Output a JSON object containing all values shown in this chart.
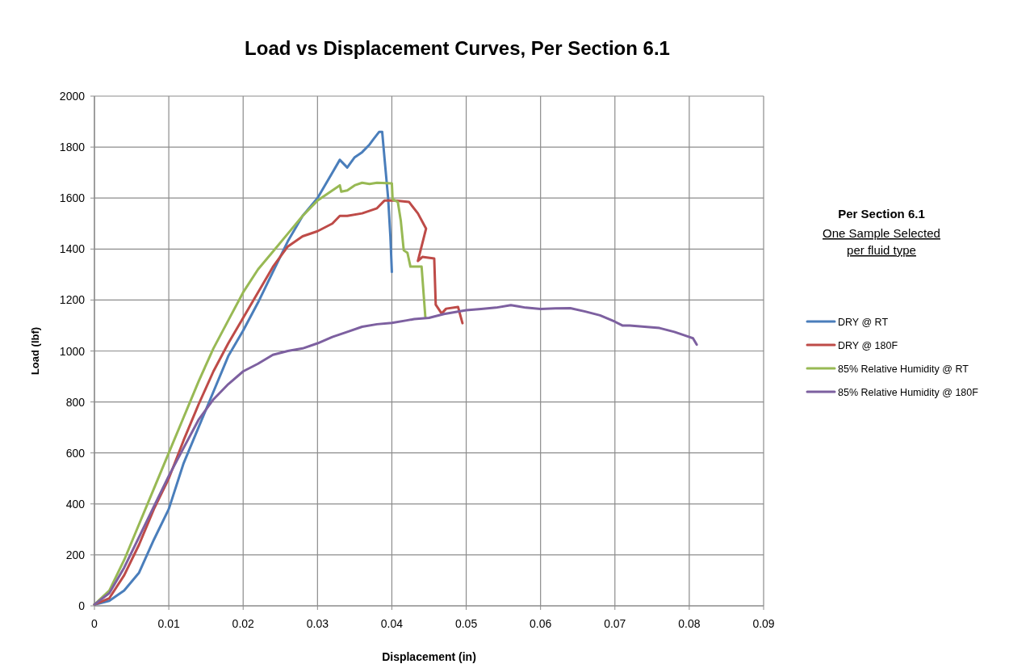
{
  "chart_data": {
    "type": "line",
    "title": "Load vs Displacement Curves, Per Section 6.1",
    "xlabel": "Displacement  (in)",
    "ylabel": "Load (lbf)",
    "legend_title": "Per Section 6.1",
    "annotations": [
      "One Sample Selected",
      "per fluid type"
    ],
    "xlim": [
      0,
      0.09
    ],
    "xticks": [
      0,
      0.01,
      0.02,
      0.03,
      0.04,
      0.05,
      0.06,
      0.07,
      0.08,
      0.09
    ],
    "ylim": [
      0,
      2000
    ],
    "yticks": [
      0,
      200,
      400,
      600,
      800,
      1000,
      1200,
      1400,
      1600,
      1800,
      2000
    ],
    "grid": true,
    "legend": "right",
    "marker": "none",
    "line_style": "solid",
    "series": [
      {
        "name": "DRY @ RT",
        "color": "#4a7ebb",
        "x": [
          0,
          0.002,
          0.004,
          0.006,
          0.008,
          0.01,
          0.012,
          0.014,
          0.016,
          0.018,
          0.02,
          0.022,
          0.024,
          0.026,
          0.028,
          0.03,
          0.031,
          0.032,
          0.033,
          0.034,
          0.035,
          0.036,
          0.037,
          0.0375,
          0.0383,
          0.0387,
          0.039,
          0.0395,
          0.0398,
          0.04
        ],
        "values": [
          5,
          20,
          60,
          130,
          260,
          380,
          560,
          700,
          840,
          980,
          1080,
          1190,
          1310,
          1430,
          1530,
          1600,
          1650,
          1700,
          1750,
          1720,
          1760,
          1780,
          1810,
          1830,
          1860,
          1860,
          1760,
          1600,
          1450,
          1310
        ]
      },
      {
        "name": "DRY @ 180F",
        "color": "#be4b48",
        "x": [
          0,
          0.002,
          0.004,
          0.006,
          0.008,
          0.01,
          0.012,
          0.014,
          0.016,
          0.018,
          0.02,
          0.022,
          0.024,
          0.026,
          0.028,
          0.03,
          0.032,
          0.033,
          0.034,
          0.036,
          0.038,
          0.039,
          0.0402,
          0.0423,
          0.0435,
          0.0446,
          0.0435,
          0.0441,
          0.0457,
          0.0459,
          0.0467,
          0.0473,
          0.0489,
          0.0495
        ],
        "values": [
          5,
          30,
          120,
          240,
          380,
          500,
          650,
          790,
          920,
          1030,
          1130,
          1230,
          1330,
          1410,
          1450,
          1470,
          1500,
          1530,
          1530,
          1540,
          1560,
          1590,
          1591,
          1585,
          1540,
          1480,
          1353,
          1369,
          1363,
          1182,
          1147,
          1166,
          1173,
          1109
        ]
      },
      {
        "name": "85% Relative Humidity @ RT",
        "color": "#98b954",
        "x": [
          0,
          0.002,
          0.004,
          0.006,
          0.008,
          0.01,
          0.012,
          0.014,
          0.016,
          0.018,
          0.02,
          0.022,
          0.024,
          0.026,
          0.028,
          0.03,
          0.032,
          0.033,
          0.0332,
          0.034,
          0.035,
          0.036,
          0.037,
          0.038,
          0.04,
          0.0401,
          0.0408,
          0.0412,
          0.0416,
          0.0421,
          0.0425,
          0.044,
          0.0445
        ],
        "values": [
          5,
          60,
          180,
          320,
          460,
          600,
          740,
          880,
          1010,
          1120,
          1230,
          1320,
          1390,
          1460,
          1530,
          1590,
          1630,
          1650,
          1625,
          1630,
          1650,
          1660,
          1655,
          1660,
          1658,
          1595,
          1585,
          1512,
          1395,
          1385,
          1331,
          1331,
          1135
        ]
      },
      {
        "name": "85% Relative Humidity @ 180F",
        "color": "#7d60a0",
        "x": [
          0,
          0.002,
          0.004,
          0.006,
          0.008,
          0.01,
          0.012,
          0.014,
          0.016,
          0.018,
          0.02,
          0.022,
          0.024,
          0.026,
          0.028,
          0.03,
          0.032,
          0.034,
          0.036,
          0.038,
          0.04,
          0.042,
          0.043,
          0.045,
          0.047,
          0.05,
          0.052,
          0.054,
          0.056,
          0.057,
          0.058,
          0.06,
          0.062,
          0.064,
          0.066,
          0.068,
          0.07,
          0.071,
          0.072,
          0.074,
          0.076,
          0.078,
          0.08,
          0.0805,
          0.081
        ],
        "values": [
          5,
          50,
          150,
          270,
          390,
          510,
          620,
          730,
          810,
          870,
          920,
          950,
          985,
          1000,
          1010,
          1030,
          1055,
          1075,
          1095,
          1105,
          1110,
          1120,
          1125,
          1130,
          1145,
          1160,
          1165,
          1170,
          1180,
          1175,
          1170,
          1165,
          1167,
          1168,
          1155,
          1140,
          1115,
          1100,
          1100,
          1095,
          1090,
          1075,
          1055,
          1050,
          1025
        ]
      }
    ]
  }
}
